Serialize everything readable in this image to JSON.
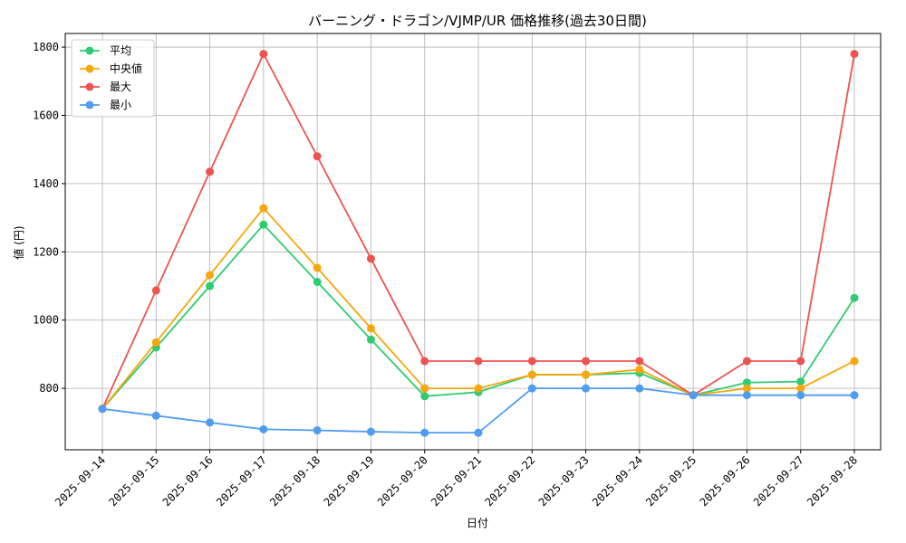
{
  "chart_data": {
    "type": "line",
    "title": "バーニング・ドラゴン/VJMP/UR 価格推移(過去30日間)",
    "xlabel": "日付",
    "ylabel": "値 (円)",
    "ylim": [
      620,
      1840
    ],
    "yticks": [
      800,
      1000,
      1200,
      1400,
      1600,
      1800
    ],
    "grid": true,
    "legend_position": "top-left",
    "categories": [
      "2025-09-14",
      "2025-09-15",
      "2025-09-16",
      "2025-09-17",
      "2025-09-18",
      "2025-09-19",
      "2025-09-20",
      "2025-09-21",
      "2025-09-22",
      "2025-09-23",
      "2025-09-24",
      "2025-09-25",
      "2025-09-26",
      "2025-09-27",
      "2025-09-28"
    ],
    "series": [
      {
        "name": "平均",
        "color": "#2ecc71",
        "values": [
          740,
          920,
          1100,
          1280,
          1112,
          943,
          777,
          789,
          840,
          840,
          845,
          780,
          817,
          820,
          1065
        ]
      },
      {
        "name": "中央値",
        "color": "#f5a70d",
        "values": [
          740,
          935,
          1132,
          1328,
          1153,
          976,
          800,
          800,
          840,
          840,
          855,
          780,
          800,
          800,
          880
        ]
      },
      {
        "name": "最大",
        "color": "#ef5350",
        "values": [
          740,
          1087,
          1435,
          1780,
          1480,
          1180,
          880,
          880,
          880,
          880,
          880,
          780,
          880,
          880,
          1780
        ]
      },
      {
        "name": "最小",
        "color": "#4f9cf0",
        "values": [
          740,
          720,
          700,
          680,
          677,
          673,
          670,
          670,
          800,
          800,
          800,
          780,
          780,
          780,
          780
        ]
      }
    ]
  }
}
